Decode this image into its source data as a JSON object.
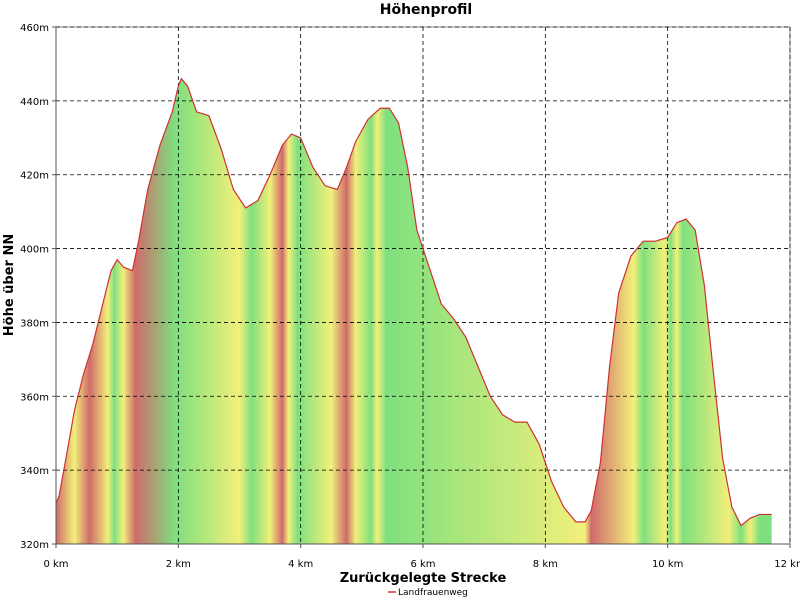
{
  "chart_data": {
    "type": "area",
    "title": "Höhenprofil",
    "xlabel": "Zurückgelegte Strecke",
    "ylabel": "Höhe über NN",
    "xlim": [
      0,
      12
    ],
    "ylim": [
      320,
      460
    ],
    "x_ticks": [
      0,
      2,
      4,
      6,
      8,
      10,
      12
    ],
    "x_tick_labels": [
      "0 km",
      "2 km",
      "4 km",
      "6 km",
      "8 km",
      "10 km",
      "12 km"
    ],
    "y_ticks": [
      320,
      340,
      360,
      380,
      400,
      420,
      440,
      460
    ],
    "y_tick_labels": [
      "320m",
      "340m",
      "360m",
      "380m",
      "400m",
      "420m",
      "440m",
      "460m"
    ],
    "grid": true,
    "legend_position": "bottom-center",
    "colors": {
      "line": "#cc3333",
      "flat": "#7ee07e",
      "moderate": "#f2f07a",
      "steep": "#cf6b6b"
    },
    "series": [
      {
        "name": "Landfrauenweg",
        "x": [
          0.0,
          0.05,
          0.15,
          0.3,
          0.45,
          0.6,
          0.75,
          0.9,
          1.0,
          1.1,
          1.25,
          1.35,
          1.5,
          1.7,
          1.9,
          2.0,
          2.05,
          2.15,
          2.3,
          2.5,
          2.7,
          2.9,
          3.1,
          3.3,
          3.5,
          3.7,
          3.85,
          4.0,
          4.2,
          4.4,
          4.6,
          4.75,
          4.9,
          5.1,
          5.3,
          5.45,
          5.6,
          5.75,
          5.9,
          6.1,
          6.3,
          6.5,
          6.7,
          6.9,
          7.1,
          7.3,
          7.5,
          7.7,
          7.9,
          8.1,
          8.3,
          8.5,
          8.65,
          8.75,
          8.9,
          9.05,
          9.2,
          9.4,
          9.6,
          9.8,
          10.0,
          10.15,
          10.3,
          10.45,
          10.6,
          10.75,
          10.9,
          11.05,
          11.2,
          11.35,
          11.5,
          11.7
        ],
        "y": [
          331,
          333,
          342,
          356,
          366,
          374,
          384,
          394,
          397,
          395,
          394,
          402,
          416,
          428,
          437,
          444,
          446,
          444,
          437,
          436,
          427,
          416,
          411,
          413,
          420,
          428,
          431,
          430,
          422,
          417,
          416,
          422,
          429,
          435,
          438,
          438,
          434,
          422,
          405,
          395,
          385,
          381,
          376,
          368,
          360,
          355,
          353,
          353,
          347,
          337,
          330,
          326,
          326,
          329,
          342,
          368,
          388,
          398,
          402,
          402,
          403,
          407,
          408,
          405,
          390,
          366,
          343,
          330,
          325,
          327,
          328,
          328
        ]
      }
    ],
    "gradient_classes": [
      [
        0.0,
        "steep"
      ],
      [
        0.3,
        "moderate"
      ],
      [
        0.55,
        "steep"
      ],
      [
        0.85,
        "moderate"
      ],
      [
        0.95,
        "flat"
      ],
      [
        1.1,
        "moderate"
      ],
      [
        1.3,
        "steep"
      ],
      [
        1.95,
        "flat"
      ],
      [
        3.0,
        "moderate"
      ],
      [
        3.2,
        "flat"
      ],
      [
        3.5,
        "moderate"
      ],
      [
        3.7,
        "steep"
      ],
      [
        3.8,
        "moderate"
      ],
      [
        3.95,
        "flat"
      ],
      [
        4.5,
        "moderate"
      ],
      [
        4.75,
        "steep"
      ],
      [
        4.9,
        "moderate"
      ],
      [
        5.15,
        "flat"
      ],
      [
        5.25,
        "moderate"
      ],
      [
        5.4,
        "flat"
      ],
      [
        8.65,
        "moderate"
      ],
      [
        8.75,
        "steep"
      ],
      [
        9.45,
        "moderate"
      ],
      [
        9.6,
        "flat"
      ],
      [
        9.95,
        "moderate"
      ],
      [
        10.05,
        "flat"
      ],
      [
        10.15,
        "moderate"
      ],
      [
        10.25,
        "flat"
      ],
      [
        11.0,
        "moderate"
      ],
      [
        11.2,
        "flat"
      ],
      [
        11.35,
        "moderate"
      ],
      [
        11.5,
        "flat"
      ]
    ]
  }
}
